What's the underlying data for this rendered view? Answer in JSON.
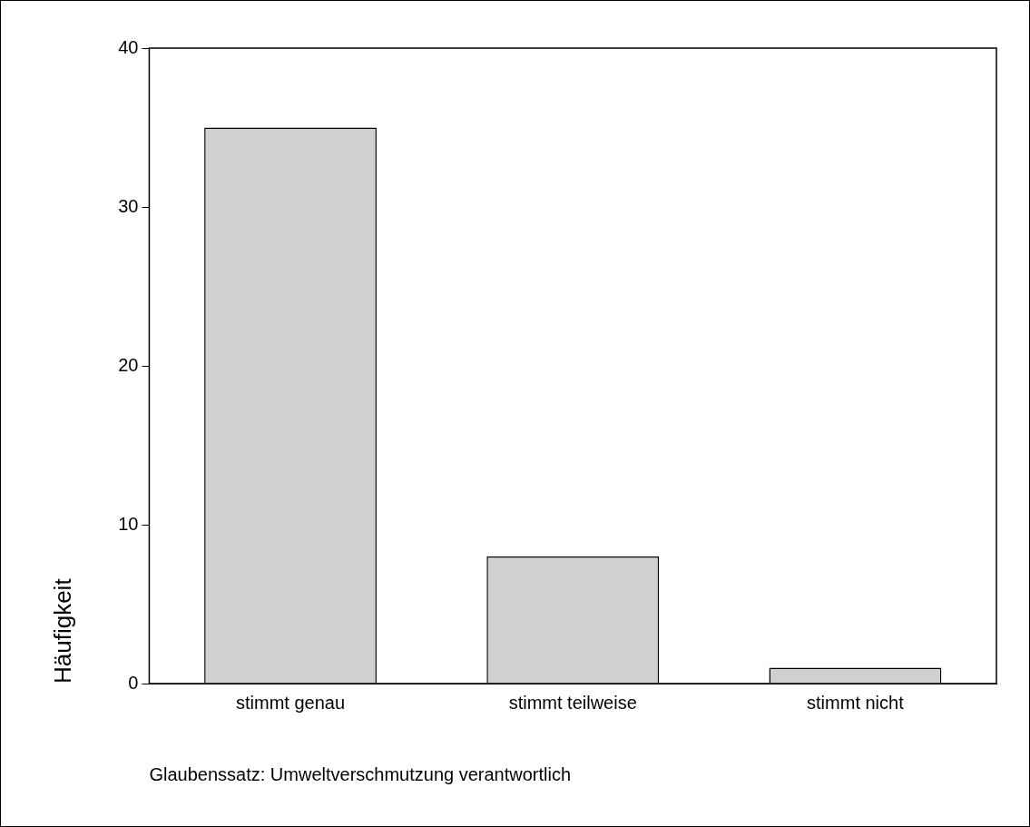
{
  "chart_data": {
    "type": "bar",
    "xlabel": "Glaubenssatz: Umweltverschmutzung verantwortlich",
    "ylabel": "Häufigkeit",
    "categories": [
      "stimmt genau",
      "stimmt teilweise",
      "stimmt nicht"
    ],
    "values": [
      35,
      8,
      1
    ],
    "color": "#d0d0d0",
    "ylim": [
      0,
      40
    ],
    "yticks": [
      0,
      10,
      20,
      30,
      40
    ],
    "grid": false,
    "legend": false
  }
}
